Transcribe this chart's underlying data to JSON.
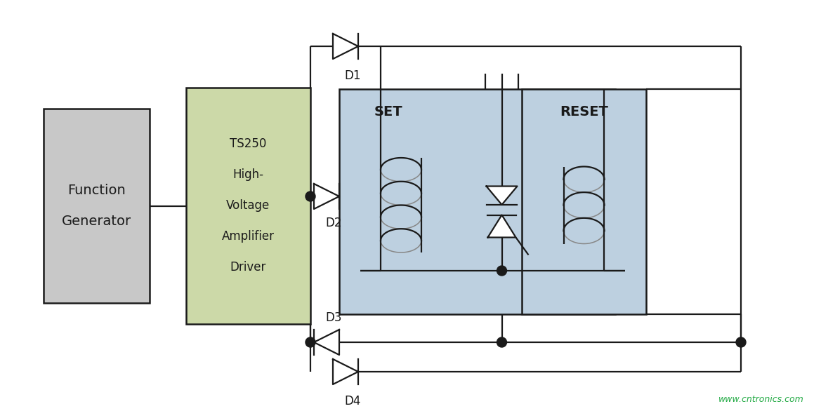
{
  "bg_color": "#ffffff",
  "line_color": "#1a1a1a",
  "relay_bg_color": "#bdd0e0",
  "relay_border_color": "#1a1a1a",
  "reset_bg_color": "#c8d8e8",
  "amp_box_color": "#ccd9a8",
  "amp_box_border": "#1a1a1a",
  "gen_box_color": "#c8c8c8",
  "gen_box_border": "#1a1a1a",
  "dot_color": "#1a1a1a",
  "text_color": "#1a1a1a",
  "watermark_color": "#22aa44",
  "watermark": "www.cntronics.com",
  "labels": {
    "fg_line1": "Function",
    "fg_line2": "Generator",
    "amp_lines": [
      "TS250",
      "High-",
      "Voltage",
      "Amplifier",
      "Driver"
    ],
    "set": "SET",
    "reset": "RESET",
    "d1": "D1",
    "d2": "D2",
    "d3": "D3",
    "d4": "D4"
  },
  "figsize": [
    11.69,
    5.96
  ],
  "dpi": 100
}
